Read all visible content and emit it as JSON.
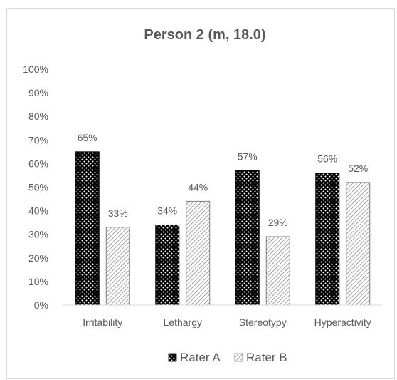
{
  "chart_data": {
    "type": "bar",
    "title": "Person 2 (m, 18.0)",
    "categories": [
      "Irritability",
      "Lethargy",
      "Stereotypy",
      "Hyperactivity"
    ],
    "series": [
      {
        "name": "Rater A",
        "values": [
          65,
          34,
          57,
          56
        ],
        "labels": [
          "65%",
          "34%",
          "57%",
          "56%"
        ],
        "pattern": "dots-on-black"
      },
      {
        "name": "Rater B",
        "values": [
          33,
          44,
          29,
          52
        ],
        "labels": [
          "33%",
          "44%",
          "29%",
          "52%"
        ],
        "pattern": "diagonal-hatch"
      }
    ],
    "ylim": [
      0,
      100
    ],
    "y_ticks": [
      "0%",
      "10%",
      "20%",
      "30%",
      "40%",
      "50%",
      "60%",
      "70%",
      "80%",
      "90%",
      "100%"
    ],
    "grid": false,
    "legend_position": "bottom",
    "xlabel": "",
    "ylabel": "",
    "colors": {
      "text": "#595959",
      "axis": "#d9d9d9",
      "seriesA": "#000000",
      "seriesB": "#7f7f7f"
    }
  }
}
